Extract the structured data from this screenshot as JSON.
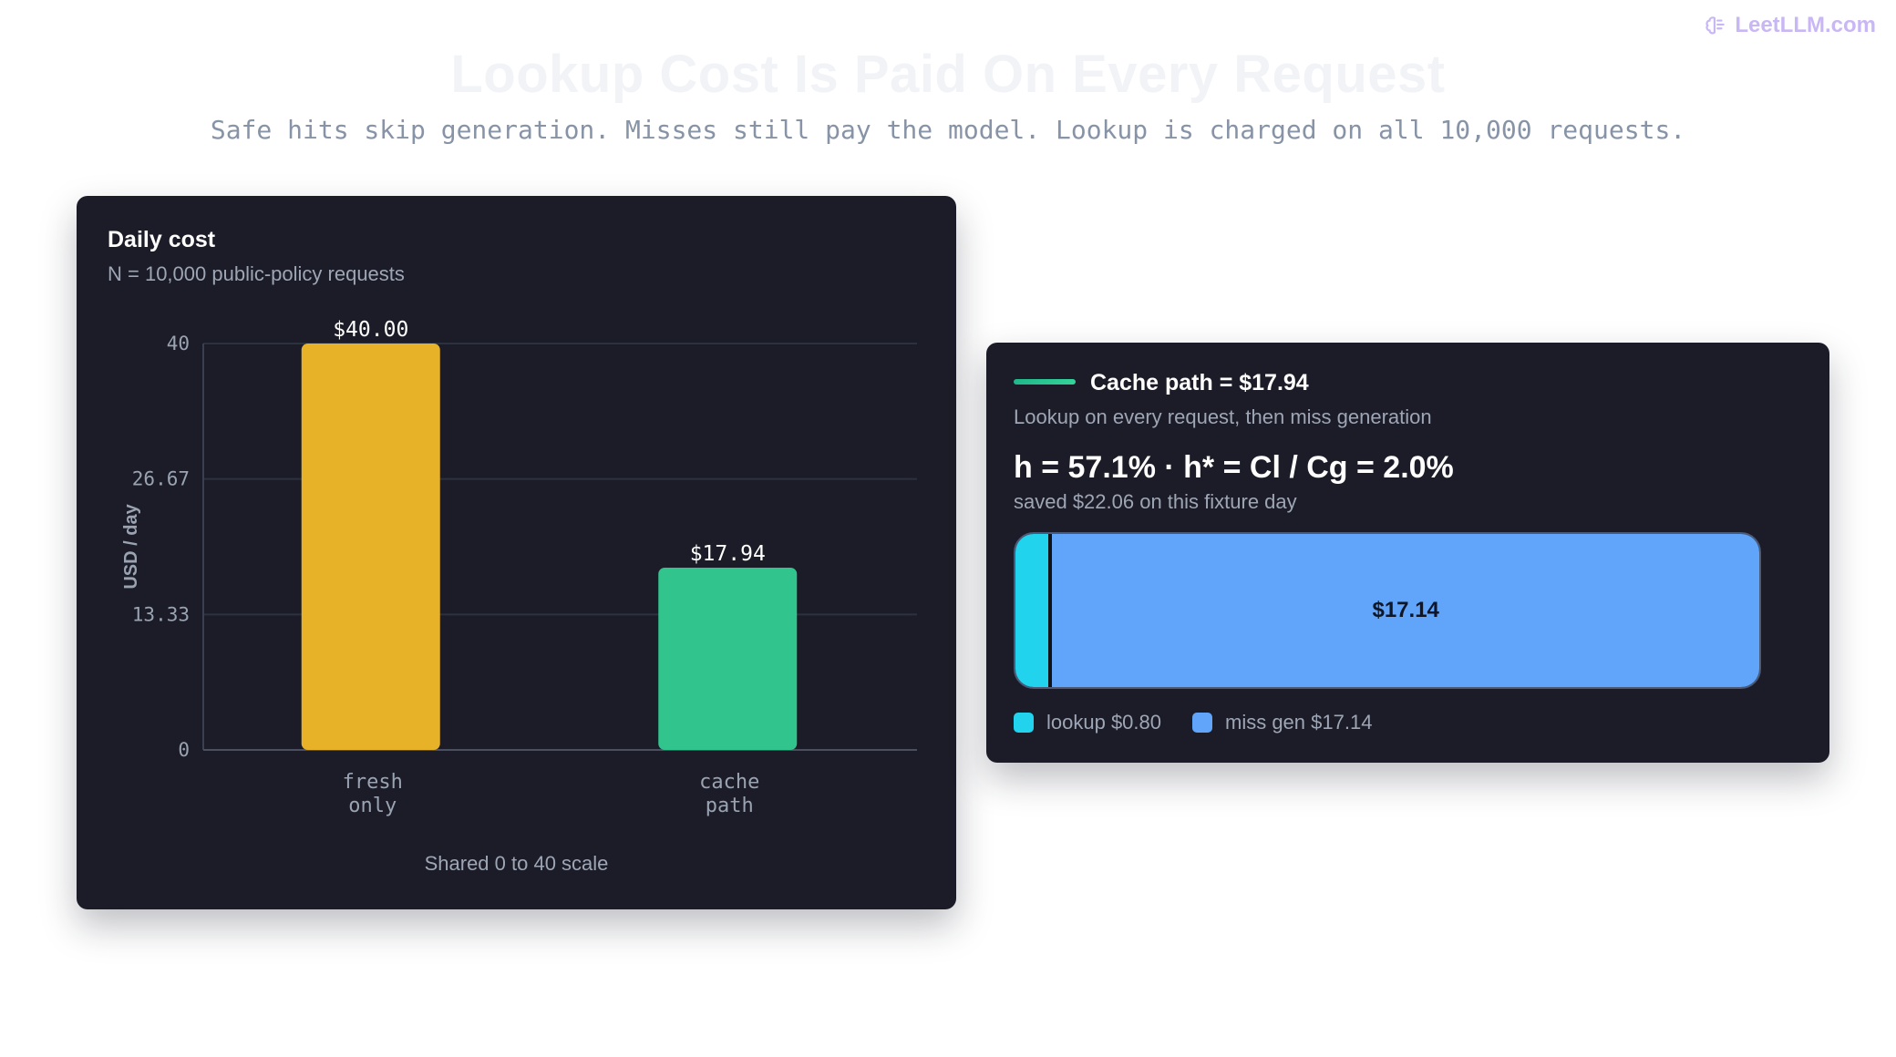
{
  "brand": {
    "name": "LeetLLM.com",
    "icon": "brain-icon"
  },
  "header": {
    "title": "Lookup Cost Is Paid On Every Request",
    "subtitle": "Safe hits skip generation. Misses still pay the model. Lookup is charged on all 10,000 requests."
  },
  "left_card": {
    "title": "Daily cost",
    "subtitle": "N = 10,000 public-policy requests",
    "footnote": "Shared 0 to 40 scale"
  },
  "right_card": {
    "title": "Cache path = $17.94",
    "subtitle": "Lookup on every request, then miss generation",
    "formula": "h = 57.1%  · h* = Cl / Cg = 2.0%",
    "saved": "saved $22.06 on this fixture day",
    "legend": [
      {
        "label": "lookup $0.80",
        "color": "#22d3ee"
      },
      {
        "label": "miss gen $17.14",
        "color": "#60a5fa"
      }
    ],
    "stack": {
      "segments": [
        {
          "name": "lookup",
          "value": 0.8,
          "color": "#22d3ee",
          "label": ""
        },
        {
          "name": "miss gen",
          "value": 17.14,
          "color": "#60a5fa",
          "label": "$17.14"
        }
      ],
      "total": 17.94
    }
  },
  "chart_data": [
    {
      "type": "bar",
      "title": "Daily cost",
      "ylabel": "USD / day",
      "categories": [
        [
          "fresh",
          "only"
        ],
        [
          "cache",
          "path"
        ]
      ],
      "values": [
        40.0,
        17.94
      ],
      "value_labels": [
        "$40.00",
        "$17.94"
      ],
      "colors": [
        "#e8b228",
        "#31c48d"
      ],
      "ylim": [
        0,
        40
      ],
      "yticks": [
        0,
        13.33,
        26.67,
        40
      ],
      "ytick_labels": [
        "0",
        "13.33",
        "26.67",
        "40"
      ],
      "grid": true
    },
    {
      "type": "bar",
      "orientation": "horizontal-stacked",
      "categories": [
        "lookup",
        "miss gen"
      ],
      "values": [
        0.8,
        17.14
      ],
      "total": 17.94
    }
  ]
}
